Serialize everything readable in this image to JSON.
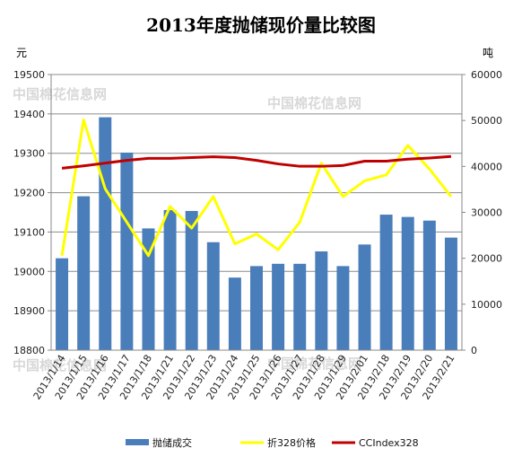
{
  "chart_data": {
    "type": "bar",
    "title": "2013年度抛储现价量比较图",
    "left_axis_unit": "元",
    "right_axis_unit": "吨",
    "categories": [
      "2013/1/14",
      "2013/1/15",
      "2013/1/16",
      "2013/1/17",
      "2013/1/18",
      "2013/1/21",
      "2013/1/22",
      "2013/1/23",
      "2013/1/24",
      "2013/1/25",
      "2013/1/26",
      "2013/1/27",
      "2013/1/28",
      "2013/1/29",
      "2013/2/01",
      "2013/2/18",
      "2013/2/19",
      "2013/2/20",
      "2013/2/21"
    ],
    "y_left": {
      "min": 18800,
      "max": 19500,
      "step": 100,
      "ticks": [
        "18800",
        "18900",
        "19000",
        "19100",
        "19200",
        "19300",
        "19400",
        "19500"
      ]
    },
    "y_right": {
      "min": 0,
      "max": 60000,
      "step": 10000,
      "ticks": [
        "0",
        "10000",
        "20000",
        "30000",
        "40000",
        "50000",
        "60000"
      ]
    },
    "grid": "horizontal",
    "legend_position": "bottom",
    "series": [
      {
        "name": "抛储成交",
        "kind": "bar",
        "axis": "right",
        "color": "#4a7ebb",
        "values": [
          20000,
          33500,
          50700,
          43000,
          26500,
          30500,
          30300,
          23500,
          15800,
          18300,
          18800,
          18800,
          21500,
          18300,
          23000,
          29500,
          29000,
          28200,
          24500
        ]
      },
      {
        "name": "折328价格",
        "kind": "line",
        "axis": "left",
        "color": "#ffff00",
        "values": [
          19040,
          19385,
          19210,
          19125,
          19040,
          19165,
          19110,
          19190,
          19070,
          19095,
          19055,
          19125,
          19275,
          19190,
          19230,
          19245,
          19320,
          19260,
          19190
        ]
      },
      {
        "name": "CCIndex328",
        "kind": "line",
        "axis": "left",
        "color": "#c00000",
        "values": [
          19262,
          19268,
          19275,
          19282,
          19287,
          19287,
          19289,
          19291,
          19289,
          19282,
          19273,
          19267,
          19267,
          19269,
          19280,
          19280,
          19285,
          19288,
          19292
        ]
      }
    ],
    "watermark": "中国棉花信息网"
  }
}
